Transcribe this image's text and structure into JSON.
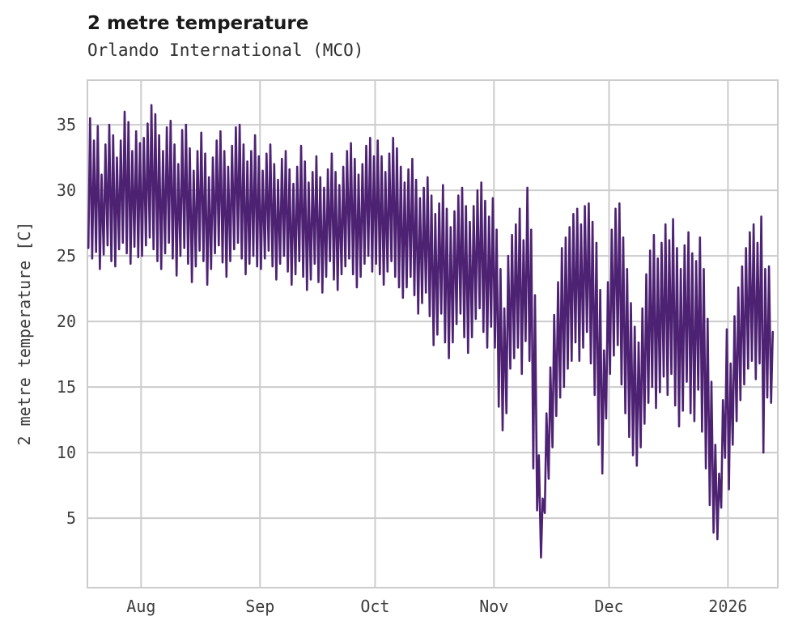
{
  "header": {
    "title": "2 metre temperature",
    "subtitle": "Orlando International (MCO)"
  },
  "chart_data": {
    "type": "line",
    "title": "2 metre temperature",
    "subtitle": "Orlando International (MCO)",
    "xlabel": "",
    "ylabel": "2 metre temperature [C]",
    "line_color": "#4e2273",
    "grid": true,
    "grid_color": "#cccccc",
    "background": "#ffffff",
    "ylim": [
      -0.3,
      38.4
    ],
    "y_ticks": [
      5,
      10,
      15,
      20,
      25,
      30,
      35
    ],
    "x_tick_labels": [
      "Aug",
      "Sep",
      "Oct",
      "Nov",
      "Dec",
      "2026"
    ],
    "x_tick_days": [
      14,
      45,
      75,
      106,
      136,
      167
    ],
    "days_total": 179,
    "legend": "none",
    "series_note": "hourly 2 m temperature trace approximated by daily min/max envelope; index 0 = mid-July, month gridlines at x_tick_days",
    "daily_max": [
      35.5,
      33.8,
      34.9,
      31.2,
      33.5,
      35.0,
      34.2,
      32.5,
      33.8,
      36.0,
      35.2,
      33.0,
      34.5,
      33.6,
      34.0,
      35.1,
      36.5,
      35.8,
      34.2,
      33.0,
      34.8,
      35.3,
      33.5,
      32.0,
      34.6,
      35.0,
      33.2,
      31.5,
      33.0,
      34.4,
      32.8,
      31.0,
      32.5,
      33.8,
      34.5,
      33.0,
      31.8,
      33.4,
      34.8,
      35.0,
      33.5,
      32.2,
      33.0,
      34.2,
      32.6,
      31.5,
      32.8,
      33.5,
      32.0,
      30.8,
      32.4,
      33.0,
      31.6,
      30.5,
      31.8,
      33.4,
      32.2,
      30.6,
      31.4,
      32.6,
      31.0,
      30.2,
      31.6,
      32.8,
      31.4,
      30.4,
      31.8,
      33.0,
      33.6,
      32.4,
      31.2,
      32.0,
      33.4,
      34.0,
      32.6,
      33.8,
      32.6,
      31.4,
      32.8,
      34.0,
      33.2,
      31.8,
      30.6,
      31.6,
      32.4,
      30.8,
      29.4,
      30.2,
      31.0,
      29.6,
      28.2,
      29.0,
      30.4,
      28.6,
      27.2,
      28.4,
      29.6,
      30.2,
      28.8,
      27.6,
      28.8,
      30.0,
      30.6,
      29.2,
      28.0,
      29.4,
      27.0,
      24.0,
      21.0,
      25.0,
      26.6,
      27.4,
      28.6,
      26.2,
      30.2,
      27.0,
      22.0,
      9.8,
      6.5,
      13.0,
      16.5,
      20.5,
      23.0,
      25.6,
      26.4,
      27.2,
      28.2,
      28.6,
      27.4,
      28.8,
      29.0,
      27.6,
      26.0,
      22.4,
      17.8,
      23.0,
      27.0,
      28.6,
      29.0,
      26.4,
      24.0,
      21.4,
      19.6,
      18.4,
      21.0,
      23.6,
      25.4,
      26.6,
      24.8,
      26.0,
      27.4,
      26.2,
      27.8,
      25.6,
      24.0,
      25.8,
      26.8,
      25.2,
      24.6,
      26.4,
      24.0,
      20.2,
      15.4,
      10.6,
      8.4,
      14.0,
      19.4,
      16.8,
      20.4,
      22.6,
      24.2,
      25.6,
      26.8,
      27.4,
      26.0,
      28.0,
      24.0,
      24.2,
      19.2
    ],
    "daily_min": [
      25.6,
      24.8,
      25.3,
      24.0,
      25.1,
      25.8,
      24.6,
      24.2,
      25.5,
      26.0,
      25.2,
      24.4,
      25.7,
      24.9,
      25.0,
      25.8,
      26.4,
      25.5,
      24.6,
      24.0,
      25.2,
      26.0,
      24.8,
      23.5,
      25.0,
      25.6,
      24.4,
      23.0,
      24.2,
      25.4,
      24.6,
      22.8,
      24.0,
      25.2,
      25.8,
      24.5,
      23.4,
      24.6,
      25.5,
      26.0,
      24.8,
      23.6,
      24.4,
      25.0,
      24.2,
      24.0,
      24.8,
      25.4,
      24.2,
      23.2,
      24.4,
      25.0,
      23.8,
      22.8,
      23.6,
      24.6,
      23.4,
      22.4,
      23.2,
      24.4,
      23.0,
      22.2,
      23.4,
      24.6,
      23.2,
      22.4,
      23.6,
      24.2,
      24.8,
      23.6,
      22.6,
      23.4,
      24.4,
      25.0,
      23.8,
      24.4,
      23.6,
      22.8,
      23.8,
      24.6,
      23.4,
      22.6,
      21.8,
      22.6,
      23.4,
      22.0,
      20.6,
      21.4,
      22.2,
      20.4,
      18.2,
      19.0,
      20.6,
      18.4,
      17.2,
      18.4,
      19.8,
      20.6,
      18.8,
      17.6,
      18.8,
      20.2,
      21.0,
      19.2,
      18.0,
      19.6,
      18.0,
      13.5,
      11.7,
      13.0,
      16.4,
      17.2,
      18.0,
      16.0,
      18.5,
      17.0,
      8.8,
      5.6,
      2.0,
      5.4,
      8.0,
      10.4,
      12.8,
      14.2,
      15.0,
      16.4,
      17.0,
      18.4,
      17.0,
      18.0,
      19.2,
      16.8,
      14.4,
      10.6,
      8.4,
      12.6,
      16.0,
      17.4,
      18.2,
      15.2,
      13.0,
      11.2,
      9.8,
      9.0,
      10.4,
      12.2,
      13.8,
      15.0,
      13.4,
      14.6,
      15.8,
      14.4,
      16.0,
      13.6,
      12.0,
      13.2,
      15.4,
      13.0,
      12.4,
      14.8,
      11.6,
      8.8,
      6.0,
      3.9,
      3.4,
      5.8,
      9.6,
      7.2,
      10.6,
      12.4,
      14.0,
      15.2,
      16.4,
      17.0,
      15.6,
      16.8,
      10.0,
      14.2,
      13.8
    ]
  }
}
